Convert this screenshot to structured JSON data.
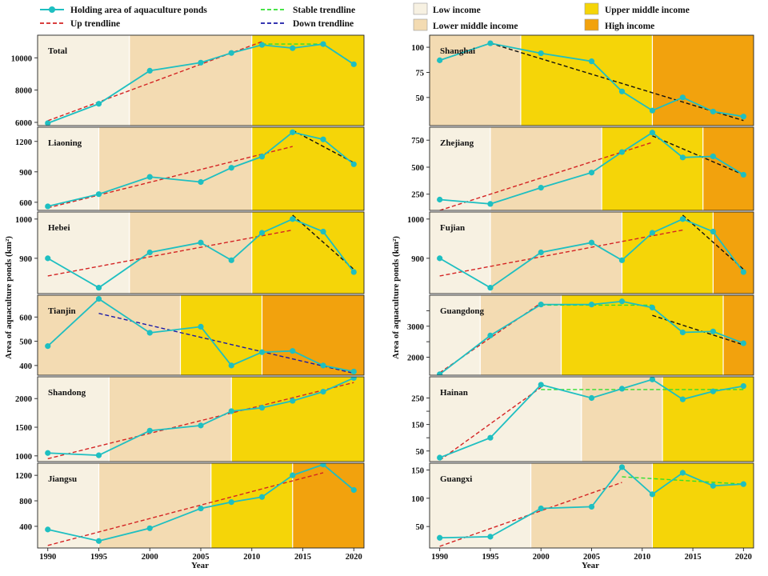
{
  "legend": {
    "series": [
      {
        "label": "Holding area of aquaculture ponds",
        "kind": "marker-line",
        "color": "#1ebfc1"
      },
      {
        "label": "Up trendline",
        "kind": "dash",
        "color": "#d42424"
      },
      {
        "label": "Stable trendline",
        "kind": "dash",
        "color": "#2ee02e"
      },
      {
        "label": "Down trendline",
        "kind": "dash",
        "color": "#1a1aa8"
      }
    ],
    "income": [
      {
        "label": "Low income",
        "color": "#f7f1e2"
      },
      {
        "label": "Lower middle income",
        "color": "#f3dbb2"
      },
      {
        "label": "Upper middle income",
        "color": "#f5d508"
      },
      {
        "label": "High income",
        "color": "#f2a20d"
      }
    ]
  },
  "axes": {
    "xlabel_left": "Year",
    "xlabel_right": "Year",
    "ylabel_left": "Area of aquaculture ponds (km²)",
    "ylabel_right": "Area of aquaculture ponds (km²)",
    "x_ticks": [
      "1990",
      "1995",
      "2000",
      "2005",
      "2010",
      "2015",
      "2020"
    ]
  },
  "colors": {
    "series": "#1ebfc1",
    "up": "#d42424",
    "stable": "#2ee02e",
    "down_blue": "#1a1aa8",
    "down_black": "#111111"
  },
  "chart_data": [
    {
      "type": "line",
      "title": "Total",
      "column": "left",
      "row": 0,
      "x": [
        1990,
        1995,
        2000,
        2005,
        2008,
        2011,
        2014,
        2017,
        2020
      ],
      "values": [
        5950,
        7150,
        9200,
        9700,
        10300,
        10800,
        10600,
        10850,
        9600
      ],
      "ylim": [
        5800,
        11400
      ],
      "yticks": [
        6000,
        8000,
        10000
      ],
      "bands": [
        [
          "low",
          1988,
          1998
        ],
        [
          "lower_middle",
          1998,
          2010
        ],
        [
          "upper_middle",
          2010,
          2021
        ]
      ],
      "trends": [
        {
          "kind": "up",
          "from": [
            1990,
            6100
          ],
          "to": [
            2011,
            11000
          ]
        },
        {
          "kind": "stable",
          "from": [
            2011,
            10850
          ],
          "to": [
            2017,
            10850
          ]
        },
        {
          "kind": "down",
          "color_key": "down_blue",
          "from": [
            2017,
            10850
          ],
          "to": [
            2020,
            9600
          ]
        }
      ]
    },
    {
      "type": "line",
      "title": "Liaoning",
      "column": "left",
      "row": 1,
      "x": [
        1990,
        1995,
        2000,
        2005,
        2008,
        2011,
        2014,
        2017,
        2020
      ],
      "values": [
        560,
        680,
        850,
        800,
        940,
        1050,
        1290,
        1220,
        975
      ],
      "ylim": [
        520,
        1340
      ],
      "yticks": [
        600,
        900,
        1200
      ],
      "bands": [
        [
          "low",
          1988,
          1995
        ],
        [
          "lower_middle",
          1995,
          2010
        ],
        [
          "upper_middle",
          2010,
          2021
        ]
      ],
      "trends": [
        {
          "kind": "up",
          "from": [
            1990,
            545
          ],
          "to": [
            2014,
            1150
          ]
        },
        {
          "kind": "down",
          "color_key": "down_black",
          "from": [
            2014,
            1310
          ],
          "to": [
            2020,
            990
          ]
        }
      ]
    },
    {
      "type": "line",
      "title": "Hebei",
      "column": "left",
      "row": 2,
      "x": [
        1990,
        1995,
        2000,
        2005,
        2008,
        2011,
        2014,
        2017,
        2020
      ],
      "values": [
        900,
        825,
        915,
        940,
        895,
        965,
        1000,
        968,
        865
      ],
      "ylim": [
        810,
        1018
      ],
      "yticks": [
        900,
        1000
      ],
      "bands": [
        [
          "low",
          1988,
          1998
        ],
        [
          "lower_middle",
          1998,
          2010
        ],
        [
          "upper_middle",
          2010,
          2021
        ]
      ],
      "trends": [
        {
          "kind": "up",
          "from": [
            1990,
            855
          ],
          "to": [
            2014,
            972
          ]
        },
        {
          "kind": "down",
          "color_key": "down_black",
          "from": [
            2014,
            1010
          ],
          "to": [
            2020,
            872
          ]
        }
      ]
    },
    {
      "type": "line",
      "title": "Tianjin",
      "column": "left",
      "row": 3,
      "x": [
        1990,
        1995,
        2000,
        2005,
        2008,
        2011,
        2014,
        2017,
        2020
      ],
      "values": [
        480,
        675,
        535,
        560,
        400,
        455,
        460,
        400,
        375
      ],
      "ylim": [
        360,
        690
      ],
      "yticks": [
        400,
        500,
        600
      ],
      "bands": [
        [
          "lower_middle",
          1988,
          2003
        ],
        [
          "upper_middle",
          2003,
          2011
        ],
        [
          "high",
          2011,
          2021
        ]
      ],
      "trends": [
        {
          "kind": "up",
          "from": [
            1990,
            480
          ],
          "to": [
            1995,
            675
          ]
        },
        {
          "kind": "down",
          "color_key": "down_blue",
          "from": [
            1995,
            615
          ],
          "to": [
            2020,
            368
          ]
        }
      ]
    },
    {
      "type": "line",
      "title": "Shandong",
      "column": "left",
      "row": 4,
      "x": [
        1990,
        1995,
        2000,
        2005,
        2008,
        2011,
        2014,
        2017,
        2020
      ],
      "values": [
        1050,
        1010,
        1440,
        1530,
        1780,
        1840,
        1960,
        2120,
        2360
      ],
      "ylim": [
        900,
        2380
      ],
      "yticks": [
        1000,
        1500,
        2000
      ],
      "bands": [
        [
          "low",
          1988,
          1996
        ],
        [
          "lower_middle",
          1996,
          2008
        ],
        [
          "upper_middle",
          2008,
          2021
        ]
      ],
      "trends": [
        {
          "kind": "up",
          "from": [
            1990,
            950
          ],
          "to": [
            2020,
            2280
          ]
        }
      ]
    },
    {
      "type": "line",
      "title": "Jiangsu",
      "column": "left",
      "row": 5,
      "x": [
        1990,
        1995,
        2000,
        2005,
        2008,
        2011,
        2014,
        2017,
        2020
      ],
      "values": [
        350,
        170,
        370,
        680,
        780,
        860,
        1200,
        1370,
        970
      ],
      "ylim": [
        60,
        1390
      ],
      "yticks": [
        400,
        800,
        1200
      ],
      "bands": [
        [
          "low",
          1988,
          1995
        ],
        [
          "lower_middle",
          1995,
          2006
        ],
        [
          "upper_middle",
          2006,
          2014
        ],
        [
          "high",
          2014,
          2021
        ]
      ],
      "trends": [
        {
          "kind": "up",
          "from": [
            1990,
            100
          ],
          "to": [
            2017,
            1240
          ]
        },
        {
          "kind": "down",
          "color_key": "down_blue",
          "from": [
            2017,
            1370
          ],
          "to": [
            2020,
            970
          ]
        }
      ]
    },
    {
      "type": "line",
      "title": "Shanghai",
      "column": "right",
      "row": 0,
      "x": [
        1990,
        1995,
        2000,
        2005,
        2008,
        2011,
        2014,
        2017,
        2020
      ],
      "values": [
        87,
        104,
        94,
        86,
        56,
        37,
        50,
        36,
        31
      ],
      "ylim": [
        22,
        112
      ],
      "yticks": [
        50,
        75,
        100
      ],
      "bands": [
        [
          "lower_middle",
          1988,
          1998
        ],
        [
          "upper_middle",
          1998,
          2011
        ],
        [
          "high",
          2011,
          2021
        ]
      ],
      "trends": [
        {
          "kind": "up",
          "from": [
            1990,
            87
          ],
          "to": [
            1995,
            104
          ]
        },
        {
          "kind": "down",
          "color_key": "down_black",
          "from": [
            1995,
            104
          ],
          "to": [
            2020,
            27
          ]
        }
      ]
    },
    {
      "type": "line",
      "title": "Zhejiang",
      "column": "right",
      "row": 1,
      "x": [
        1990,
        1995,
        2000,
        2005,
        2008,
        2011,
        2014,
        2017,
        2020
      ],
      "values": [
        200,
        160,
        310,
        450,
        640,
        820,
        590,
        600,
        430
      ],
      "ylim": [
        100,
        870
      ],
      "yticks": [
        250,
        500,
        750
      ],
      "bands": [
        [
          "low",
          1988,
          1995
        ],
        [
          "lower_middle",
          1995,
          2006
        ],
        [
          "upper_middle",
          2006,
          2016
        ],
        [
          "high",
          2016,
          2021
        ]
      ],
      "trends": [
        {
          "kind": "up",
          "from": [
            1990,
            100
          ],
          "to": [
            2011,
            730
          ]
        },
        {
          "kind": "down",
          "color_key": "down_black",
          "from": [
            2011,
            790
          ],
          "to": [
            2020,
            430
          ]
        }
      ]
    },
    {
      "type": "line",
      "title": "Fujian",
      "column": "right",
      "row": 2,
      "x": [
        1990,
        1995,
        2000,
        2005,
        2008,
        2011,
        2014,
        2017,
        2020
      ],
      "values": [
        900,
        825,
        915,
        940,
        895,
        965,
        1000,
        968,
        865
      ],
      "ylim": [
        810,
        1018
      ],
      "yticks": [
        900,
        1000
      ],
      "bands": [
        [
          "low",
          1988,
          1995
        ],
        [
          "lower_middle",
          1995,
          2008
        ],
        [
          "upper_middle",
          2008,
          2017
        ],
        [
          "high",
          2017,
          2021
        ]
      ],
      "trends": [
        {
          "kind": "up",
          "from": [
            1990,
            855
          ],
          "to": [
            2014,
            972
          ]
        },
        {
          "kind": "down",
          "color_key": "down_black",
          "from": [
            2014,
            1010
          ],
          "to": [
            2020,
            872
          ]
        }
      ]
    },
    {
      "type": "line",
      "title": "Guangdong",
      "column": "right",
      "row": 3,
      "x": [
        1990,
        1995,
        2000,
        2005,
        2008,
        2011,
        2014,
        2017,
        2020
      ],
      "values": [
        1450,
        2700,
        3700,
        3700,
        3800,
        3600,
        2800,
        2830,
        2450
      ],
      "ylim": [
        1420,
        4000
      ],
      "yticks": [
        2000,
        2500,
        3000,
        3500
      ],
      "ytick_labels": [
        "2000",
        "",
        "3000",
        ""
      ],
      "bands": [
        [
          "low",
          1988,
          1994
        ],
        [
          "lower_middle",
          1994,
          2002
        ],
        [
          "upper_middle",
          2002,
          2018
        ],
        [
          "high",
          2018,
          2021
        ]
      ],
      "trends": [
        {
          "kind": "up",
          "from": [
            1990,
            1500
          ],
          "to": [
            2000,
            3750
          ]
        },
        {
          "kind": "stable",
          "from": [
            2000,
            3680
          ],
          "to": [
            2011,
            3680
          ]
        },
        {
          "kind": "down",
          "color_key": "down_black",
          "from": [
            2011,
            3350
          ],
          "to": [
            2020,
            2400
          ]
        }
      ]
    },
    {
      "type": "line",
      "title": "Hainan",
      "column": "right",
      "row": 4,
      "x": [
        1990,
        1995,
        2000,
        2005,
        2008,
        2011,
        2014,
        2017,
        2020
      ],
      "values": [
        25,
        100,
        300,
        250,
        285,
        320,
        245,
        275,
        295
      ],
      "ylim": [
        10,
        330
      ],
      "yticks": [
        50,
        100,
        150,
        200,
        250
      ],
      "ytick_labels": [
        "50",
        "",
        "150",
        "",
        "250"
      ],
      "bands": [
        [
          "low",
          1988,
          2004
        ],
        [
          "lower_middle",
          2004,
          2012
        ],
        [
          "upper_middle",
          2012,
          2021
        ]
      ],
      "trends": [
        {
          "kind": "up",
          "from": [
            1990,
            15
          ],
          "to": [
            2000,
            290
          ]
        },
        {
          "kind": "stable",
          "from": [
            2000,
            282
          ],
          "to": [
            2020,
            282
          ]
        }
      ]
    },
    {
      "type": "line",
      "title": "Guangxi",
      "column": "right",
      "row": 5,
      "x": [
        1990,
        1995,
        2000,
        2005,
        2008,
        2011,
        2014,
        2017,
        2020
      ],
      "values": [
        30,
        32,
        82,
        85,
        155,
        107,
        145,
        122,
        125
      ],
      "ylim": [
        12,
        162
      ],
      "yticks": [
        50,
        100,
        150
      ],
      "bands": [
        [
          "low",
          1988,
          1999
        ],
        [
          "lower_middle",
          1999,
          2011
        ],
        [
          "upper_middle",
          2011,
          2021
        ]
      ],
      "trends": [
        {
          "kind": "up",
          "from": [
            1990,
            15
          ],
          "to": [
            2008,
            128
          ]
        },
        {
          "kind": "stable",
          "from": [
            2008,
            138
          ],
          "to": [
            2020,
            125
          ]
        }
      ]
    }
  ]
}
